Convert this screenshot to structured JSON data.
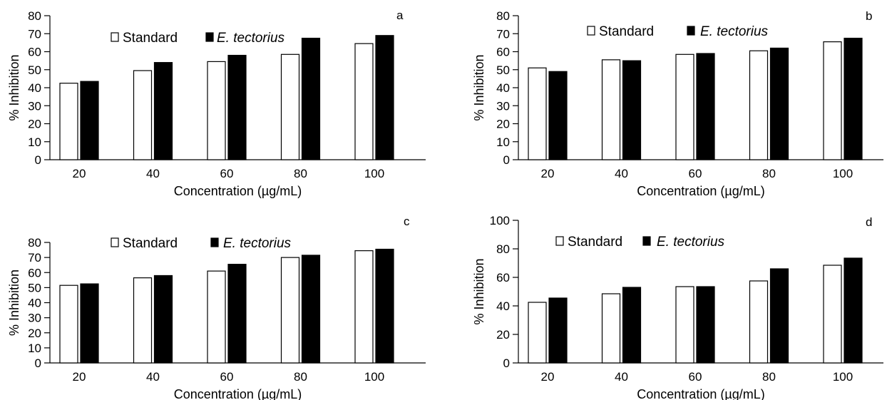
{
  "chart_data": [
    {
      "type": "bar",
      "panel_label": "a",
      "categories": [
        "20",
        "40",
        "60",
        "80",
        "100"
      ],
      "series": [
        {
          "name": "Standard",
          "values": [
            42.5,
            49.5,
            54.5,
            58.5,
            64.5
          ],
          "color": "#ffffff"
        },
        {
          "name": "E. tectorius",
          "values": [
            43.5,
            54.0,
            58.0,
            67.5,
            69.0
          ],
          "color": "#000000"
        }
      ],
      "xlabel": "Concentration (µg/mL)",
      "ylabel": "% Inhibition",
      "ylim": [
        0,
        80
      ],
      "yticks": [
        "0",
        "10",
        "20",
        "30",
        "40",
        "50",
        "60",
        "70",
        "80"
      ],
      "grid": false,
      "legend": "top"
    },
    {
      "type": "bar",
      "panel_label": "b",
      "categories": [
        "20",
        "40",
        "60",
        "80",
        "100"
      ],
      "series": [
        {
          "name": "Standard",
          "values": [
            51.0,
            55.5,
            58.5,
            60.5,
            65.5
          ],
          "color": "#ffffff"
        },
        {
          "name": "E. tectorius",
          "values": [
            49.0,
            55.0,
            59.0,
            62.0,
            67.5
          ],
          "color": "#000000"
        }
      ],
      "xlabel": "Concentration (µg/mL)",
      "ylabel": "% Inhibition",
      "ylim": [
        0,
        80
      ],
      "yticks": [
        "0",
        "10",
        "20",
        "30",
        "40",
        "50",
        "60",
        "70",
        "80"
      ],
      "grid": false,
      "legend": "top"
    },
    {
      "type": "bar",
      "panel_label": "c",
      "categories": [
        "20",
        "40",
        "60",
        "80",
        "100"
      ],
      "series": [
        {
          "name": "Standard",
          "values": [
            51.5,
            56.5,
            61.0,
            70.0,
            74.5
          ],
          "color": "#ffffff"
        },
        {
          "name": "E. tectorius",
          "values": [
            52.5,
            58.0,
            65.5,
            71.5,
            75.5
          ],
          "color": "#000000"
        }
      ],
      "xlabel": "Concentration (µg/mL)",
      "ylabel": "% Inhibition",
      "ylim": [
        0,
        80
      ],
      "yticks": [
        "0",
        "10",
        "20",
        "30",
        "40",
        "50",
        "60",
        "70",
        "80"
      ],
      "grid": false,
      "legend": "top"
    },
    {
      "type": "bar",
      "panel_label": "d",
      "categories": [
        "20",
        "40",
        "60",
        "80",
        "100"
      ],
      "series": [
        {
          "name": "Standard",
          "values": [
            42.5,
            48.5,
            53.5,
            57.5,
            68.5
          ],
          "color": "#ffffff"
        },
        {
          "name": "E. tectorius",
          "values": [
            45.5,
            53.0,
            53.5,
            66.0,
            73.5
          ],
          "color": "#000000"
        }
      ],
      "xlabel": "Concentration (µg/mL)",
      "ylabel": "% Inhibition",
      "ylim": [
        0,
        100
      ],
      "yticks": [
        "0",
        "20",
        "40",
        "60",
        "80",
        "100"
      ],
      "grid": false,
      "legend": "top"
    }
  ]
}
